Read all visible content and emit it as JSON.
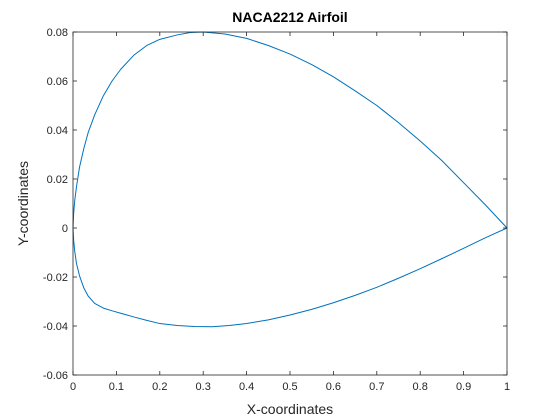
{
  "chart_data": {
    "type": "line",
    "title": "NACA2212 Airfoil",
    "xlabel": "X-coordinates",
    "ylabel": "Y-coordinates",
    "xlim": [
      0,
      1
    ],
    "ylim": [
      -0.06,
      0.08
    ],
    "xticks": [
      "0",
      "0.1",
      "0.2",
      "0.3",
      "0.4",
      "0.5",
      "0.6",
      "0.7",
      "0.8",
      "0.9",
      "1"
    ],
    "yticks": [
      "-0.06",
      "-0.04",
      "-0.02",
      "0",
      "0.02",
      "0.04",
      "0.06",
      "0.08"
    ],
    "grid": false,
    "series": [
      {
        "color": "#0072BD",
        "x": [
          1.0,
          0.95,
          0.9,
          0.85,
          0.8,
          0.75,
          0.7,
          0.65,
          0.6,
          0.55,
          0.5,
          0.45,
          0.4,
          0.35,
          0.3,
          0.27,
          0.24,
          0.2,
          0.17,
          0.14,
          0.11,
          0.09,
          0.07,
          0.05,
          0.035,
          0.025,
          0.015,
          0.008,
          0.004,
          0.0015,
          0.0,
          0.0015,
          0.004,
          0.008,
          0.015,
          0.025,
          0.035,
          0.05,
          0.07,
          0.09,
          0.11,
          0.14,
          0.17,
          0.2,
          0.24,
          0.28,
          0.32,
          0.36,
          0.4,
          0.45,
          0.5,
          0.55,
          0.6,
          0.65,
          0.7,
          0.75,
          0.8,
          0.85,
          0.9,
          0.95,
          1.0
        ],
        "y": [
          0.0,
          0.0095,
          0.0185,
          0.0275,
          0.0355,
          0.043,
          0.05,
          0.056,
          0.0617,
          0.0667,
          0.071,
          0.0745,
          0.0774,
          0.0792,
          0.08,
          0.0798,
          0.0788,
          0.077,
          0.0745,
          0.0705,
          0.0648,
          0.06,
          0.054,
          0.0462,
          0.039,
          0.0325,
          0.0248,
          0.0168,
          0.0112,
          0.006,
          0.0,
          -0.005,
          -0.0095,
          -0.0145,
          -0.0195,
          -0.0245,
          -0.0278,
          -0.0308,
          -0.0327,
          -0.0338,
          -0.0348,
          -0.0363,
          -0.0377,
          -0.039,
          -0.0398,
          -0.0402,
          -0.0403,
          -0.0398,
          -0.039,
          -0.0375,
          -0.0355,
          -0.0332,
          -0.0305,
          -0.0275,
          -0.0242,
          -0.0205,
          -0.0166,
          -0.0125,
          -0.0083,
          -0.004,
          0.0
        ]
      }
    ]
  }
}
